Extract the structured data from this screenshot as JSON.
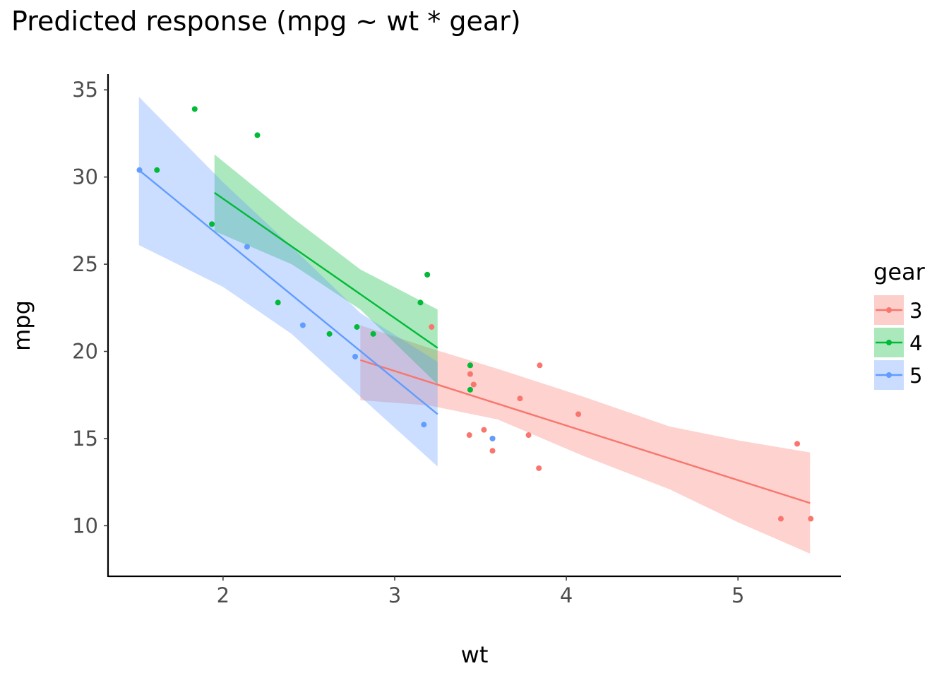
{
  "chart_data": {
    "type": "scatter",
    "title": "Predicted response (mpg ~ wt * gear)",
    "xlabel": "wt",
    "ylabel": "mpg",
    "xlim": [
      1.33,
      5.6
    ],
    "ylim": [
      7.1,
      35.9
    ],
    "x_ticks": [
      2,
      3,
      4,
      5
    ],
    "y_ticks": [
      10,
      15,
      20,
      25,
      30,
      35
    ],
    "grid": false,
    "legend": {
      "title": "gear",
      "position": "right"
    },
    "series": [
      {
        "name": "3",
        "color": "#F8766D",
        "fill": "#FCCFCB",
        "points": [
          [
            3.215,
            21.4
          ],
          [
            3.44,
            18.7
          ],
          [
            3.46,
            18.1
          ],
          [
            3.57,
            14.3
          ],
          [
            3.19,
            24.4
          ],
          [
            3.44,
            19.2
          ],
          [
            4.07,
            16.4
          ],
          [
            3.73,
            17.3
          ],
          [
            3.78,
            15.2
          ],
          [
            5.25,
            10.4
          ],
          [
            5.424,
            10.4
          ],
          [
            5.345,
            14.7
          ],
          [
            3.52,
            15.5
          ],
          [
            3.435,
            15.2
          ],
          [
            3.84,
            13.3
          ],
          [
            3.845,
            19.2
          ],
          [
            3.57,
            15.0
          ]
        ],
        "line": [
          [
            2.8,
            19.5
          ],
          [
            5.42,
            11.3
          ]
        ],
        "ribbon": [
          [
            2.8,
            21.5,
            17.2
          ],
          [
            3.2,
            20.2,
            16.9
          ],
          [
            3.6,
            19.0,
            16.1
          ],
          [
            4.1,
            17.4,
            14.0
          ],
          [
            4.6,
            15.7,
            12.1
          ],
          [
            5.0,
            14.9,
            10.2
          ],
          [
            5.42,
            14.2,
            8.4
          ]
        ]
      },
      {
        "name": "4",
        "color": "#00BA38",
        "fill": "#ABE9BC",
        "points": [
          [
            2.62,
            21.0
          ],
          [
            2.875,
            21.0
          ],
          [
            2.32,
            22.8
          ],
          [
            3.19,
            24.4
          ],
          [
            3.15,
            22.8
          ],
          [
            3.44,
            19.2
          ],
          [
            3.44,
            17.8
          ],
          [
            2.2,
            32.4
          ],
          [
            1.835,
            33.9
          ],
          [
            1.935,
            27.3
          ],
          [
            2.78,
            21.4
          ],
          [
            1.615,
            30.4
          ]
        ],
        "line": [
          [
            1.95,
            29.1
          ],
          [
            3.25,
            20.2
          ]
        ],
        "ribbon": [
          [
            1.95,
            31.3,
            26.9
          ],
          [
            2.4,
            27.7,
            25.0
          ],
          [
            2.8,
            24.7,
            22.4
          ],
          [
            3.25,
            22.4,
            18.1
          ]
        ]
      },
      {
        "name": "5",
        "color": "#619CFF",
        "fill": "#CBDDFF",
        "points": [
          [
            1.513,
            30.4
          ],
          [
            2.14,
            26.0
          ],
          [
            2.77,
            19.7
          ],
          [
            3.17,
            15.8
          ],
          [
            3.57,
            15.0
          ],
          [
            2.465,
            21.5
          ]
        ],
        "line": [
          [
            1.51,
            30.4
          ],
          [
            3.25,
            16.4
          ]
        ],
        "ribbon": [
          [
            1.51,
            34.6,
            26.1
          ],
          [
            2.0,
            29.7,
            23.7
          ],
          [
            2.4,
            26.0,
            21.0
          ],
          [
            2.8,
            22.2,
            17.4
          ],
          [
            3.25,
            19.4,
            13.4
          ]
        ]
      }
    ]
  }
}
